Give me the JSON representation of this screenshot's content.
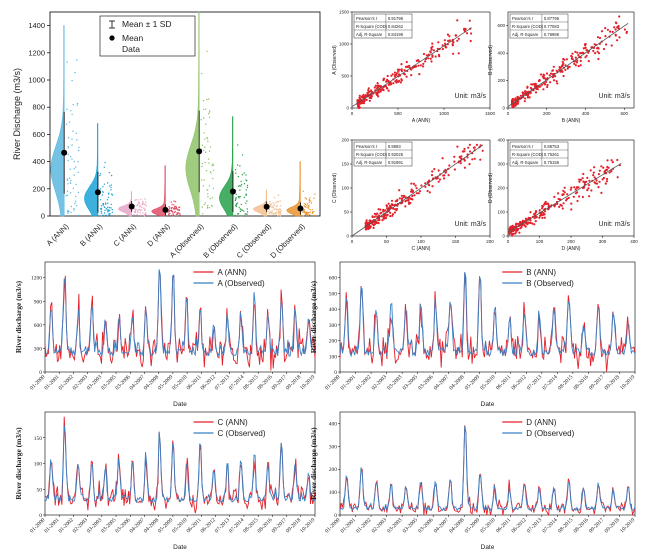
{
  "chart_data": [
    {
      "type": "violin",
      "id": "violin",
      "ylabel": "River Discharge (m3/s)",
      "ylim": [
        0,
        1500
      ],
      "yticks": [
        0,
        200,
        400,
        600,
        800,
        1000,
        1200,
        1400
      ],
      "legend": {
        "sd": "Mean ± 1 SD",
        "mean": "Mean",
        "data": "Data"
      },
      "series": [
        {
          "name": "A (ANN)",
          "mean": 465,
          "sd": 300,
          "max": 1400,
          "color": "#5cb8e0"
        },
        {
          "name": "B (ANN)",
          "mean": 175,
          "sd": 150,
          "max": 680,
          "color": "#1aa3d8"
        },
        {
          "name": "C (ANN)",
          "mean": 70,
          "sd": 40,
          "max": 180,
          "color": "#e8a6c6"
        },
        {
          "name": "D (ANN)",
          "mean": 45,
          "sd": 40,
          "max": 370,
          "color": "#e24e66"
        },
        {
          "name": "A (Observed)",
          "mean": 475,
          "sd": 300,
          "max": 1500,
          "color": "#8fc36a"
        },
        {
          "name": "B (Observed)",
          "mean": 180,
          "sd": 150,
          "max": 730,
          "color": "#27a14a"
        },
        {
          "name": "C (Observed)",
          "mean": 68,
          "sd": 40,
          "max": 190,
          "color": "#f2bf8c"
        },
        {
          "name": "D (Observed)",
          "mean": 55,
          "sd": 45,
          "max": 400,
          "color": "#e8942e"
        }
      ]
    },
    {
      "type": "scatter",
      "id": "scA",
      "xlabel": "A (ANN)",
      "ylabel": "A (Observed)",
      "xlim": [
        0,
        1500
      ],
      "ylim": [
        0,
        1500
      ],
      "xticks": [
        0,
        500,
        1000,
        1500
      ],
      "yticks": [
        0,
        500,
        1000,
        1500
      ],
      "stats": {
        "pearson": "0.91796",
        "r2": "0.84262",
        "adj_r2": "0.84196"
      },
      "unit": "Unit: m3/s",
      "fit": {
        "slope": 0.95,
        "intercept": 20
      },
      "x_range": [
        60,
        1300
      ]
    },
    {
      "type": "scatter",
      "id": "scB",
      "xlabel": "B (ANN)",
      "ylabel": "B (Observed)",
      "xlim": [
        0,
        650
      ],
      "ylim": [
        0,
        700
      ],
      "xticks": [
        0,
        200,
        400,
        600
      ],
      "yticks": [
        0,
        200,
        400,
        600
      ],
      "stats": {
        "pearson": "0.87795",
        "r2": "0.77083",
        "adj_r2": "0.76986"
      },
      "unit": "Unit: m3/s",
      "fit": {
        "slope": 0.98,
        "intercept": 10
      },
      "x_range": [
        20,
        620
      ]
    },
    {
      "type": "scatter",
      "id": "scC",
      "xlabel": "C (ANN)",
      "ylabel": "C (Observed)",
      "xlim": [
        0,
        200
      ],
      "ylim": [
        0,
        200
      ],
      "xticks": [
        0,
        50,
        100,
        150,
        200
      ],
      "yticks": [
        0,
        50,
        100,
        150,
        200
      ],
      "stats": {
        "pearson": "0.9593",
        "r2": "0.92025",
        "adj_r2": "0.91991"
      },
      "unit": "Unit: m3/s",
      "fit": {
        "slope": 1.0,
        "intercept": 0
      },
      "x_range": [
        20,
        190
      ]
    },
    {
      "type": "scatter",
      "id": "scD",
      "xlabel": "D (ANN)",
      "ylabel": "D (Observed)",
      "xlim": [
        0,
        400
      ],
      "ylim": [
        0,
        400
      ],
      "xticks": [
        0,
        100,
        200,
        300,
        400
      ],
      "yticks": [
        0,
        100,
        200,
        300,
        400
      ],
      "stats": {
        "pearson": "0.86753",
        "r2": "0.75261",
        "adj_r2": "0.75156"
      },
      "unit": "Unit: m3/s",
      "fit": {
        "slope": 0.8,
        "intercept": 15
      },
      "x_range": [
        5,
        360
      ]
    },
    {
      "type": "line",
      "id": "tsA",
      "ylabel": "River discharge (m3/s)",
      "xlabel": "Date",
      "ylim": [
        0,
        1400
      ],
      "yticks": [
        0,
        300,
        600,
        900,
        1200
      ],
      "legend": [
        "A (ANN)",
        "A (Observed)"
      ],
      "base": 200,
      "peak": 850,
      "peaks": [
        800,
        1200,
        700,
        800,
        650,
        700,
        700,
        750,
        1380,
        1300,
        800,
        700,
        600,
        650,
        750,
        950,
        700,
        900,
        800,
        700
      ]
    },
    {
      "type": "line",
      "id": "tsB",
      "ylabel": "River discharge (m3/s)",
      "xlabel": "Date",
      "ylim": [
        0,
        700
      ],
      "yticks": [
        0,
        100,
        200,
        300,
        400,
        500,
        600
      ],
      "legend": [
        "B (ANN)",
        "B (Observed)"
      ],
      "base": 100,
      "peak": 400,
      "peaks": [
        470,
        520,
        380,
        430,
        360,
        430,
        420,
        470,
        650,
        620,
        400,
        330,
        380,
        360,
        390,
        450,
        300,
        420,
        360,
        300
      ]
    },
    {
      "type": "line",
      "id": "tsC",
      "ylabel": "River discharge (m3/s)",
      "xlabel": "Date",
      "ylim": [
        0,
        200
      ],
      "yticks": [
        0,
        50,
        100,
        150
      ],
      "legend": [
        "C (ANN)",
        "C (Observed)"
      ],
      "base": 25,
      "peak": 90,
      "peaks": [
        105,
        185,
        100,
        95,
        90,
        100,
        100,
        110,
        160,
        140,
        100,
        145,
        90,
        95,
        100,
        120,
        95,
        145,
        100,
        80
      ]
    },
    {
      "type": "line",
      "id": "tsD",
      "ylabel": "River discharge (m3/s)",
      "xlabel": "Date",
      "ylim": [
        0,
        450
      ],
      "yticks": [
        0,
        100,
        200,
        300,
        400
      ],
      "legend": [
        "D (ANN)",
        "D (Observed)"
      ],
      "base": 20,
      "peak": 120,
      "peaks": [
        180,
        210,
        140,
        130,
        120,
        140,
        150,
        160,
        410,
        180,
        120,
        100,
        130,
        110,
        120,
        140,
        110,
        130,
        110,
        120
      ]
    }
  ],
  "dates": [
    "01-2000",
    "01-2001",
    "01-2002",
    "02-2003",
    "03-2003",
    "03-2005",
    "03-2006",
    "04-2007",
    "04-2008",
    "05-2009",
    "05-2010",
    "06-2011",
    "06-2012",
    "07-2013",
    "07-2014",
    "08-2015",
    "08-2016",
    "09-2017",
    "09-2018",
    "10-2019"
  ],
  "colors": {
    "ann": "#e5202a",
    "obs": "#3b82c4",
    "scatter": "#e5202a"
  }
}
